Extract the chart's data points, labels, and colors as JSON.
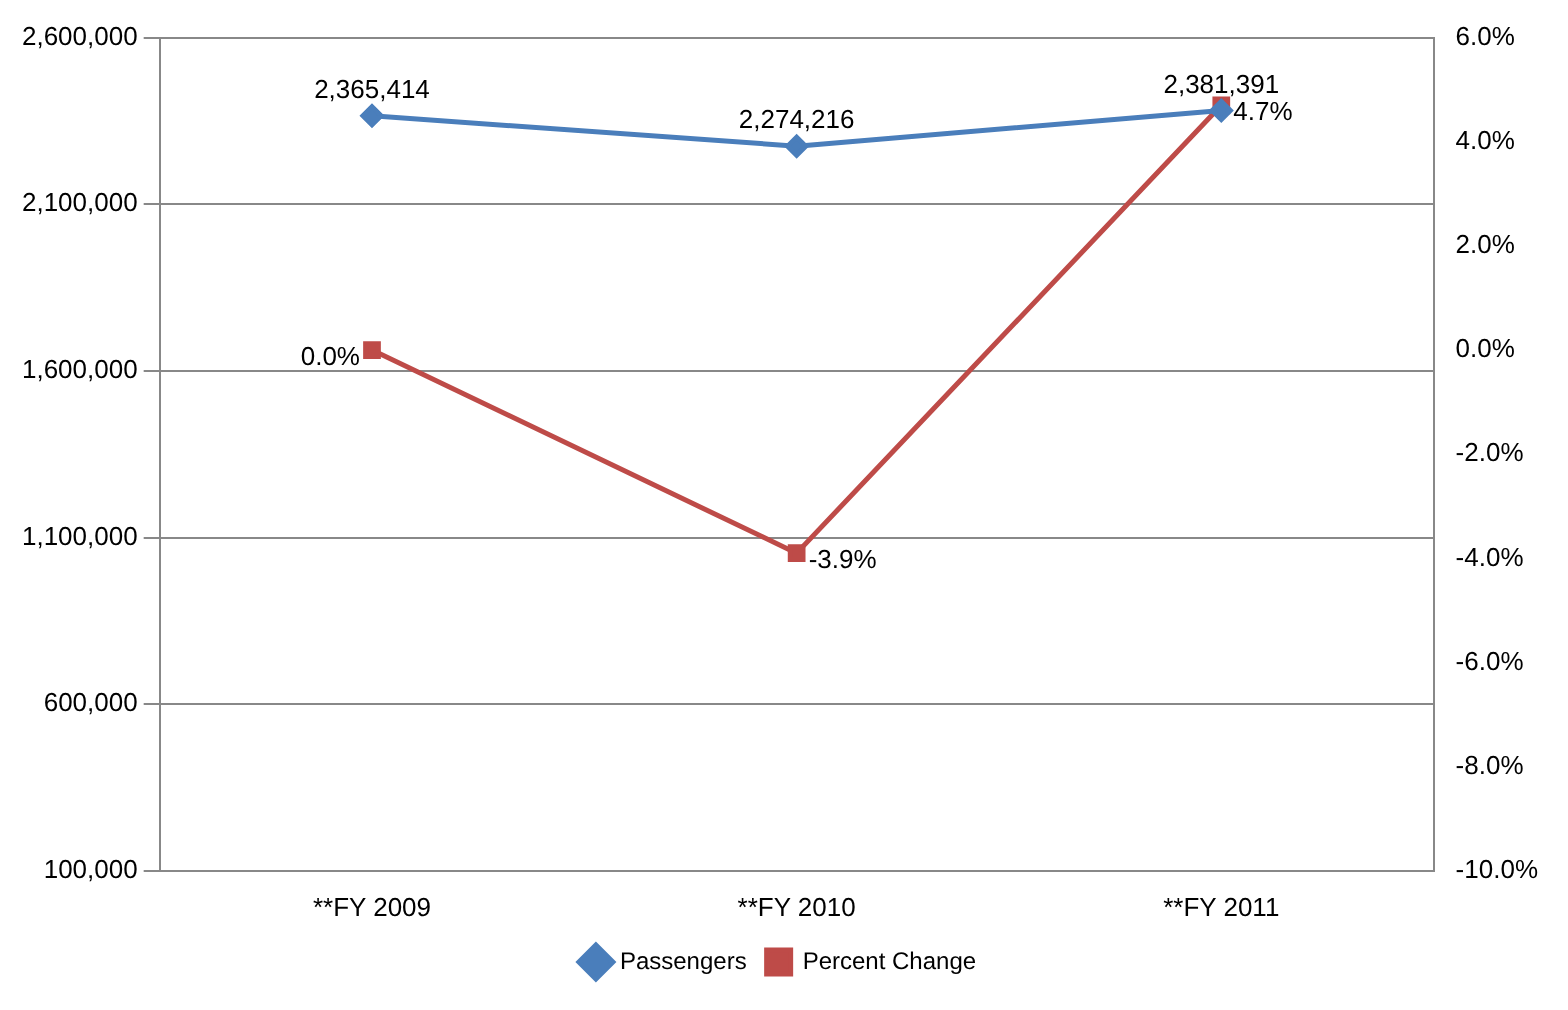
{
  "chart_data": {
    "type": "line",
    "categories": [
      "**FY 2009",
      "**FY 2010",
      "**FY 2011"
    ],
    "series": [
      {
        "name": "Passengers",
        "color": "#4a7ebb",
        "values": [
          2365414,
          2274216,
          2381391
        ],
        "marker": "diamond",
        "value_labels": [
          "2,365,414",
          "2,274,216",
          "2,381,391"
        ]
      },
      {
        "name": "Percent Change",
        "color": "#be4b48",
        "values": [
          0,
          -3.9,
          4.7
        ],
        "axis": "y2",
        "marker": "square",
        "value_labels": [
          "0.0%",
          "-3.9%",
          "4.7%"
        ]
      }
    ],
    "ylim": [
      100000,
      2600000
    ],
    "yticks": [
      {
        "value": 100000,
        "label": "100,000"
      },
      {
        "value": 600000,
        "label": "600,000"
      },
      {
        "value": 1100000,
        "label": "1,100,000"
      },
      {
        "value": 1600000,
        "label": "1,600,000"
      },
      {
        "value": 2100000,
        "label": "2,100,000"
      },
      {
        "value": 2600000,
        "label": "2,600,000"
      }
    ],
    "y2lim": [
      -10,
      6
    ],
    "y2ticks": [
      {
        "value": -10,
        "label": "-10.0%"
      },
      {
        "value": -8,
        "label": "-8.0%"
      },
      {
        "value": -6,
        "label": "-6.0%"
      },
      {
        "value": -4,
        "label": "-4.0%"
      },
      {
        "value": -2,
        "label": "-2.0%"
      },
      {
        "value": 0,
        "label": "0.0%"
      },
      {
        "value": 2,
        "label": "2.0%"
      },
      {
        "value": 4,
        "label": "4.0%"
      },
      {
        "value": 6,
        "label": "6.0%"
      }
    ],
    "grid": "y",
    "legend": "bottom",
    "line_style": "solid"
  }
}
